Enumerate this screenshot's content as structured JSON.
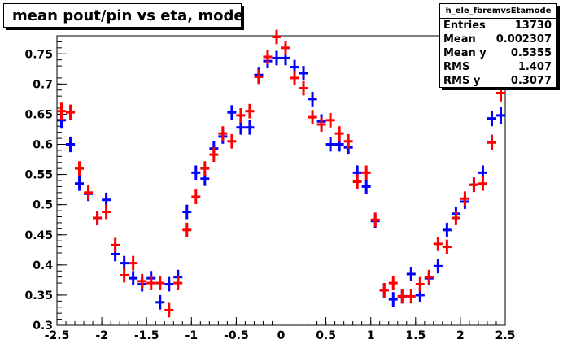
{
  "title": "mean pout/pin vs eta, mode",
  "stats": {
    "name": "h_ele_fbremvsEtamode",
    "rows": [
      {
        "key": "Entries",
        "value": "13730"
      },
      {
        "key": "Mean",
        "value": "0.002307"
      },
      {
        "key": "Mean y",
        "value": "0.5355"
      },
      {
        "key": "RMS",
        "value": "1.407"
      },
      {
        "key": "RMS y",
        "value": "0.3077"
      }
    ]
  },
  "chart_data": {
    "type": "scatter",
    "xlim": [
      -2.5,
      2.5
    ],
    "ylim": [
      0.3,
      0.78
    ],
    "x_ticks": [
      "-2.5",
      "-2",
      "-1.5",
      "-1",
      "-0.5",
      "0",
      "0.5",
      "1",
      "1.5",
      "2",
      "2.5"
    ],
    "y_ticks": [
      "0.3",
      "0.35",
      "0.4",
      "0.45",
      "0.5",
      "0.55",
      "0.6",
      "0.65",
      "0.7",
      "0.75"
    ],
    "grid": false,
    "bin_width": 0.1,
    "series": [
      {
        "color": "#0000ff",
        "x": [
          -2.45,
          -2.35,
          -2.25,
          -2.15,
          -2.05,
          -1.95,
          -1.85,
          -1.75,
          -1.65,
          -1.55,
          -1.45,
          -1.35,
          -1.25,
          -1.15,
          -1.05,
          -0.95,
          -0.85,
          -0.75,
          -0.65,
          -0.55,
          -0.45,
          -0.35,
          -0.25,
          -0.15,
          -0.05,
          0.05,
          0.15,
          0.25,
          0.35,
          0.45,
          0.55,
          0.65,
          0.75,
          0.85,
          0.95,
          1.05,
          1.15,
          1.25,
          1.35,
          1.45,
          1.55,
          1.65,
          1.75,
          1.85,
          1.95,
          2.05,
          2.15,
          2.25,
          2.35,
          2.45
        ],
        "y": [
          0.64,
          0.6,
          0.535,
          0.518,
          0.478,
          0.508,
          0.418,
          0.403,
          0.378,
          0.368,
          0.378,
          0.338,
          0.368,
          0.38,
          0.488,
          0.553,
          0.543,
          0.593,
          0.613,
          0.653,
          0.628,
          0.628,
          0.715,
          0.738,
          0.743,
          0.743,
          0.728,
          0.718,
          0.675,
          0.638,
          0.6,
          0.6,
          0.595,
          0.553,
          0.53,
          0.473,
          0.358,
          0.343,
          0.348,
          0.385,
          0.35,
          0.378,
          0.398,
          0.458,
          0.485,
          0.505,
          0.533,
          0.553,
          0.643,
          0.648
        ],
        "err": [
          0.014,
          0.013,
          0.012,
          0.012,
          0.012,
          0.012,
          0.012,
          0.012,
          0.012,
          0.012,
          0.012,
          0.012,
          0.012,
          0.012,
          0.012,
          0.012,
          0.012,
          0.012,
          0.012,
          0.012,
          0.012,
          0.012,
          0.012,
          0.012,
          0.012,
          0.012,
          0.012,
          0.012,
          0.012,
          0.012,
          0.012,
          0.012,
          0.012,
          0.012,
          0.012,
          0.012,
          0.012,
          0.012,
          0.012,
          0.012,
          0.012,
          0.012,
          0.012,
          0.012,
          0.012,
          0.012,
          0.012,
          0.012,
          0.013,
          0.014
        ]
      },
      {
        "color": "#ff0000",
        "x": [
          -2.45,
          -2.35,
          -2.25,
          -2.15,
          -2.05,
          -1.95,
          -1.85,
          -1.75,
          -1.65,
          -1.55,
          -1.45,
          -1.35,
          -1.25,
          -1.15,
          -1.05,
          -0.95,
          -0.85,
          -0.75,
          -0.65,
          -0.55,
          -0.45,
          -0.35,
          -0.25,
          -0.15,
          -0.05,
          0.05,
          0.15,
          0.25,
          0.35,
          0.45,
          0.55,
          0.65,
          0.75,
          0.85,
          0.95,
          1.05,
          1.15,
          1.25,
          1.35,
          1.45,
          1.55,
          1.65,
          1.75,
          1.85,
          1.95,
          2.05,
          2.15,
          2.25,
          2.35,
          2.45
        ],
        "y": [
          0.655,
          0.653,
          0.56,
          0.52,
          0.478,
          0.488,
          0.433,
          0.383,
          0.403,
          0.373,
          0.37,
          0.37,
          0.325,
          0.37,
          0.458,
          0.513,
          0.56,
          0.583,
          0.618,
          0.605,
          0.648,
          0.655,
          0.712,
          0.745,
          0.778,
          0.76,
          0.71,
          0.693,
          0.645,
          0.633,
          0.64,
          0.618,
          0.605,
          0.538,
          0.553,
          0.475,
          0.358,
          0.37,
          0.348,
          0.348,
          0.368,
          0.38,
          0.435,
          0.43,
          0.478,
          0.51,
          0.533,
          0.535,
          0.603,
          0.685
        ],
        "err": [
          0.014,
          0.013,
          0.012,
          0.012,
          0.012,
          0.012,
          0.012,
          0.012,
          0.012,
          0.012,
          0.012,
          0.012,
          0.012,
          0.012,
          0.012,
          0.012,
          0.012,
          0.012,
          0.012,
          0.012,
          0.012,
          0.012,
          0.012,
          0.012,
          0.012,
          0.012,
          0.012,
          0.012,
          0.012,
          0.012,
          0.012,
          0.012,
          0.012,
          0.012,
          0.012,
          0.012,
          0.012,
          0.012,
          0.012,
          0.012,
          0.012,
          0.012,
          0.012,
          0.012,
          0.012,
          0.012,
          0.012,
          0.012,
          0.013,
          0.014
        ]
      }
    ]
  }
}
